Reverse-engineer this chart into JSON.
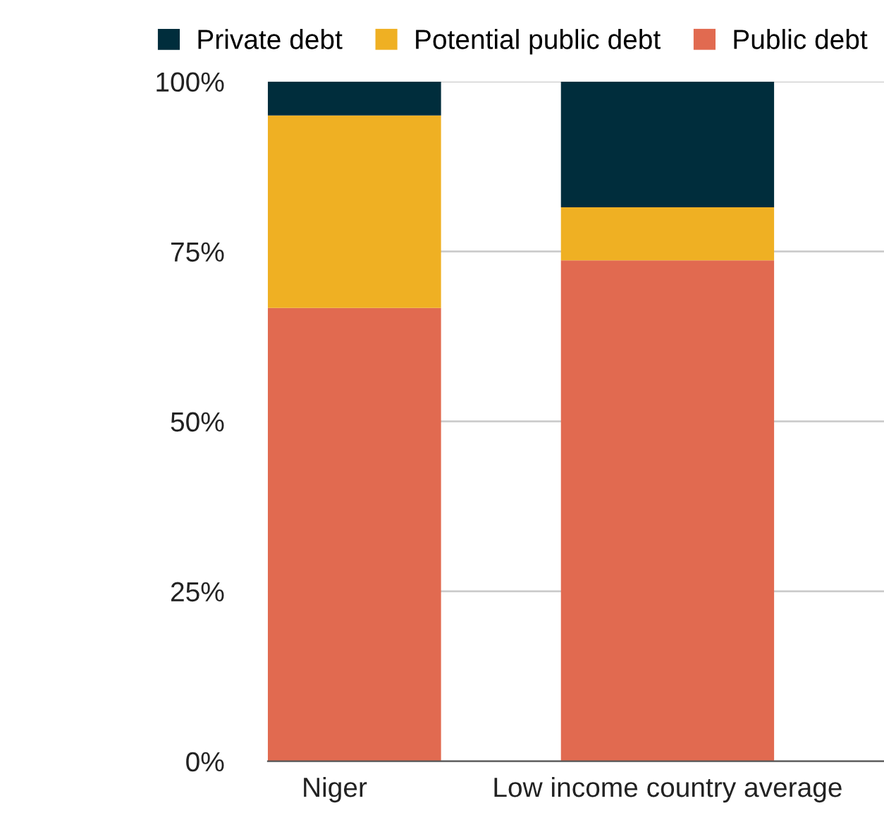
{
  "chart_data": {
    "type": "bar",
    "stacked": true,
    "categories": [
      "Niger",
      "Low income country average"
    ],
    "series": [
      {
        "name": "Public debt",
        "color": "#e16a50",
        "values": [
          66.7,
          73.7
        ]
      },
      {
        "name": "Potential public debt",
        "color": "#efb023",
        "values": [
          28.3,
          7.8
        ]
      },
      {
        "name": "Private debt",
        "color": "#002d3c",
        "values": [
          5.0,
          18.5
        ]
      }
    ],
    "ylim": [
      0,
      100
    ],
    "yticks": [
      {
        "value": 0,
        "label": "0%"
      },
      {
        "value": 25,
        "label": "25%"
      },
      {
        "value": 50,
        "label": "50%"
      },
      {
        "value": 75,
        "label": "75%"
      },
      {
        "value": 100,
        "label": "100%"
      }
    ],
    "grid": "y",
    "legend": "top"
  }
}
